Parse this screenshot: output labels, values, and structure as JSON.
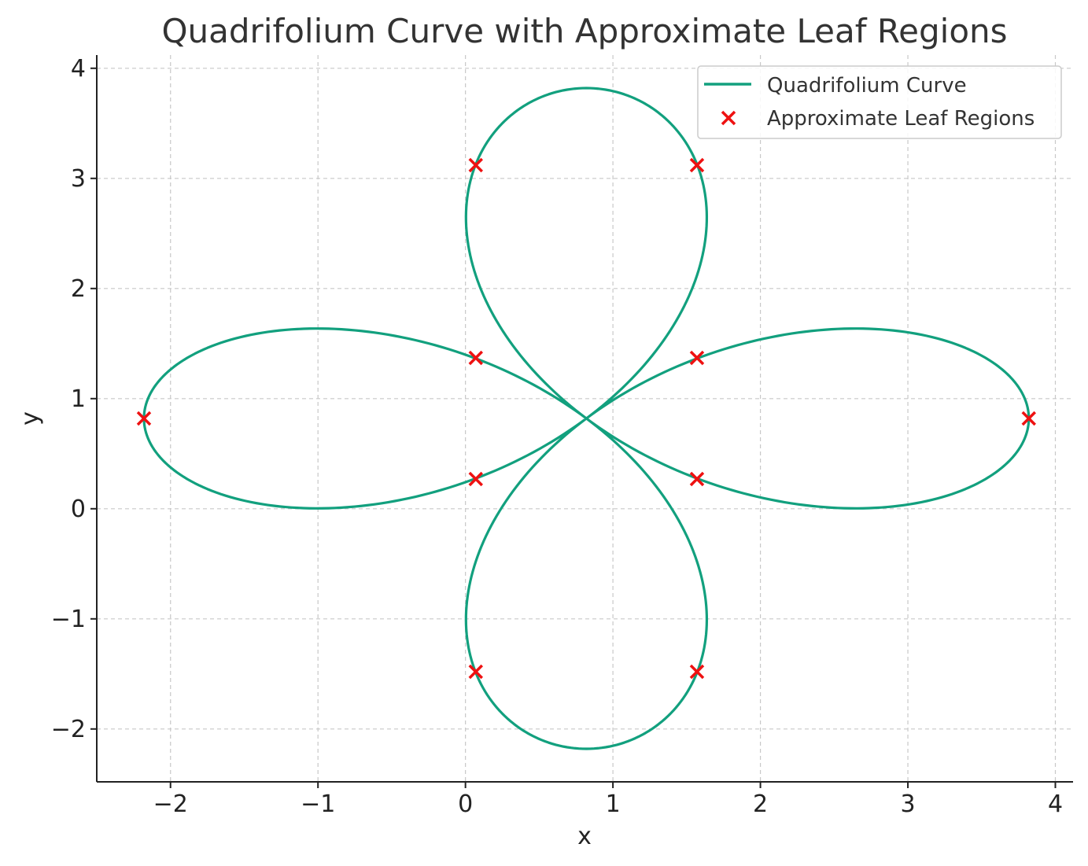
{
  "chart_data": {
    "type": "line",
    "title": "Quadrifolium Curve with Approximate Leaf Regions",
    "xlabel": "x",
    "ylabel": "y",
    "xlim": [
      -2.5,
      4.12
    ],
    "ylim": [
      -2.48,
      4.12
    ],
    "xticks": [
      -2,
      -1,
      0,
      1,
      2,
      3,
      4
    ],
    "yticks": [
      -2,
      -1,
      0,
      1,
      2,
      3,
      4
    ],
    "xtick_labels": [
      "−2",
      "−1",
      "0",
      "1",
      "2",
      "3",
      "4"
    ],
    "ytick_labels": [
      "−2",
      "−1",
      "0",
      "1",
      "2",
      "3",
      "4"
    ],
    "grid": true,
    "legend_position": "top-right",
    "series": [
      {
        "name": "Quadrifolium Curve",
        "kind": "line",
        "color": "#12a07e",
        "curve": {
          "equation": "r = 3*cos(2*theta)",
          "center": [
            0.82,
            0.82
          ],
          "samples": 720
        }
      },
      {
        "name": "Approximate Leaf Regions",
        "kind": "scatter",
        "marker": "x",
        "color": "#ee1111",
        "x": [
          3.82,
          1.57,
          0.07,
          -2.18,
          0.07,
          1.57,
          1.57,
          0.07,
          0.07,
          1.57
        ],
        "y": [
          0.82,
          1.37,
          3.12,
          0.82,
          1.37,
          3.12,
          0.27,
          0.27,
          -1.48,
          -1.48
        ]
      }
    ]
  }
}
